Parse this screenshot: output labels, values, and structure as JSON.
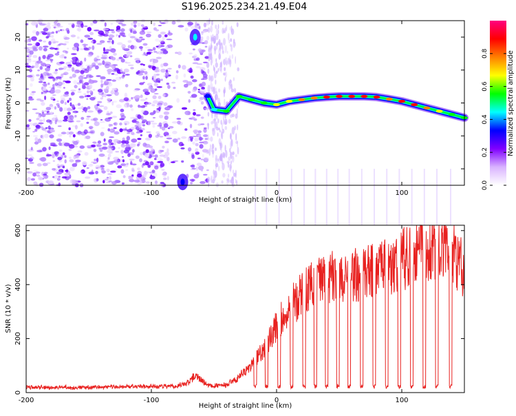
{
  "title": "S196.2025.234.21.49.E04",
  "chart_data": [
    {
      "type": "heatmap",
      "name": "spectrogram",
      "xlabel": "Height of straight line (km)",
      "ylabel": "Frequency (Hz)",
      "xlim": [
        -200,
        150
      ],
      "ylim": [
        -25,
        25
      ],
      "xticks": [
        -200,
        -100,
        0,
        100
      ],
      "yticks": [
        -20,
        -10,
        0,
        10,
        20
      ],
      "colorbar": {
        "label": "Normalized spectral amplitude",
        "range": [
          0,
          1
        ],
        "ticks": [
          "0.0",
          "0.2",
          "0.4",
          "0.6",
          "0.8"
        ],
        "colors": [
          "#ffffff",
          "#d9b3ff",
          "#8000ff",
          "#0000ff",
          "#00ffff",
          "#00ff00",
          "#ffff00",
          "#ff8000",
          "#ff0000",
          "#ff0080"
        ]
      },
      "trace": {
        "x": [
          -55,
          -50,
          -40,
          -30,
          -20,
          -10,
          0,
          10,
          20,
          30,
          40,
          50,
          60,
          70,
          80,
          90,
          100,
          110,
          120,
          130,
          140,
          150
        ],
        "freq": [
          2,
          -2,
          -2.5,
          2,
          1,
          0,
          -0.5,
          0.5,
          1,
          1.5,
          1.8,
          2,
          2,
          2,
          1.8,
          1.2,
          0.5,
          -0.5,
          -1.5,
          -2.5,
          -3.5,
          -4.5
        ],
        "amplitude": [
          0.3,
          0.4,
          0.5,
          0.55,
          0.6,
          0.6,
          0.65,
          0.7,
          0.8,
          0.8,
          0.85,
          0.9,
          0.9,
          0.9,
          0.85,
          0.8,
          0.85,
          0.85,
          0.8,
          0.7,
          0.6,
          0.5
        ]
      },
      "early_features": [
        {
          "x": -65,
          "freq": 20,
          "amplitude": 0.4
        },
        {
          "x": -75,
          "freq": -24,
          "amplitude": 0.3
        }
      ]
    },
    {
      "type": "line",
      "name": "snr",
      "xlabel": "Height of straight line (km)",
      "ylabel": "SNR (10 * v/v)",
      "xlim": [
        -200,
        150
      ],
      "ylim": [
        0,
        620
      ],
      "xticks": [
        -200,
        -100,
        0,
        100
      ],
      "yticks": [
        0,
        200,
        400,
        600
      ],
      "color": "#e8211f",
      "series": [
        {
          "name": "SNR",
          "x": [
            -200,
            -150,
            -100,
            -80,
            -70,
            -65,
            -60,
            -55,
            -50,
            -40,
            -30,
            -20,
            -10,
            0,
            10,
            20,
            30,
            40,
            50,
            60,
            70,
            80,
            90,
            100,
            110,
            120,
            130,
            140,
            150
          ],
          "values": [
            20,
            20,
            25,
            25,
            40,
            70,
            50,
            30,
            25,
            30,
            60,
            110,
            170,
            260,
            330,
            380,
            430,
            450,
            460,
            460,
            470,
            480,
            490,
            520,
            550,
            570,
            590,
            560,
            470
          ]
        }
      ],
      "dropouts_x": [
        -17,
        -8,
        2,
        12,
        22,
        31,
        40,
        49,
        58,
        68,
        78,
        88,
        98,
        108,
        118,
        128,
        139
      ]
    }
  ]
}
